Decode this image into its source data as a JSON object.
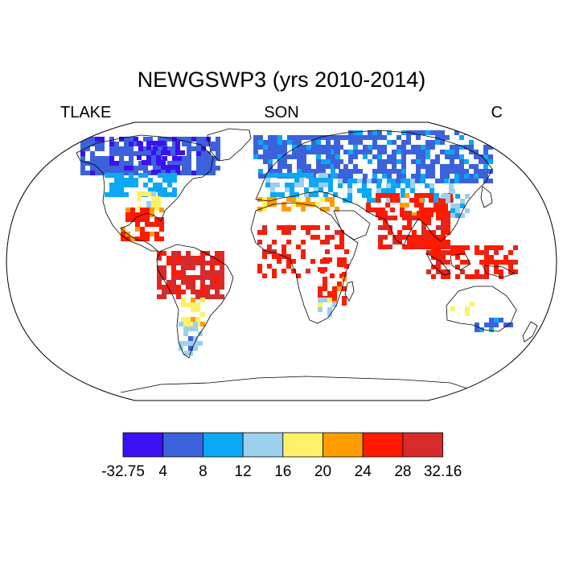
{
  "title": "NEWGSWP3 (yrs 2010-2014)",
  "left_label": "TLAKE",
  "center_label": "SON",
  "right_label": "C",
  "map": {
    "projection": "robinson",
    "background": "#ffffff",
    "coastline_color": "#000000"
  },
  "legend": {
    "labels": [
      "-32.75",
      "4",
      "8",
      "12",
      "16",
      "20",
      "24",
      "28",
      "32.16"
    ],
    "colors": [
      "#3b10f2",
      "#3c62db",
      "#0aa8f5",
      "#9bd0ee",
      "#fff067",
      "#ff9d00",
      "#ff1a00",
      "#d72a2a"
    ]
  },
  "chart_data": {
    "type": "heatmap",
    "variable": "TLAKE",
    "units": "C",
    "season": "SON",
    "years": "2010-2014",
    "bins": [
      {
        "min": -32.75,
        "max": 4,
        "color": "#3b10f2"
      },
      {
        "min": 4,
        "max": 8,
        "color": "#3c62db"
      },
      {
        "min": 8,
        "max": 12,
        "color": "#0aa8f5"
      },
      {
        "min": 12,
        "max": 16,
        "color": "#9bd0ee"
      },
      {
        "min": 16,
        "max": 20,
        "color": "#fff067"
      },
      {
        "min": 20,
        "max": 24,
        "color": "#ff9d00"
      },
      {
        "min": 24,
        "max": 28,
        "color": "#ff1a00"
      },
      {
        "min": 28,
        "max": 32.16,
        "color": "#d72a2a"
      }
    ],
    "data_range": [
      -32.75,
      32.16
    ]
  }
}
